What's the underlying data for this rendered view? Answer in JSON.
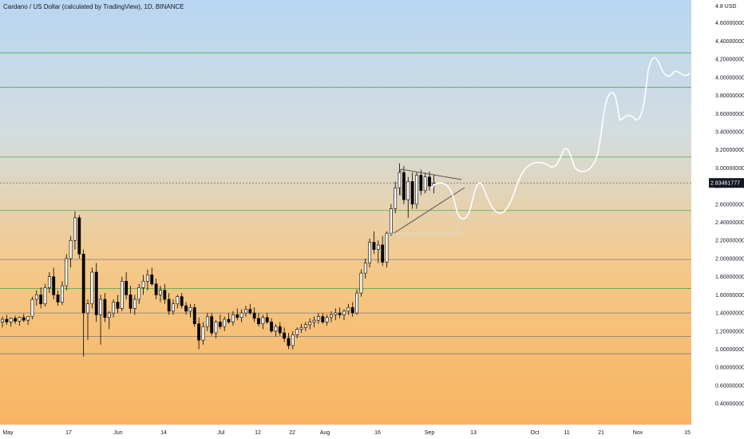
{
  "header": {
    "title": "Cardano / US Dollar (calculated by TradingView), 1D, BINANCE"
  },
  "chart_data": {
    "type": "candlestick",
    "y_axis": {
      "unit_label": "4.8 USD",
      "ylim": [
        0.3,
        4.8
      ],
      "ticks": [
        "4.60000000",
        "4.40000000",
        "4.20000000",
        "4.00000000",
        "3.80000000",
        "3.60000000",
        "3.40000000",
        "3.20000000",
        "3.00000000",
        "2.80000000",
        "2.60000000",
        "2.40000000",
        "2.20000000",
        "2.00000000",
        "1.80000000",
        "1.60000000",
        "1.40000000",
        "1.20000000",
        "1.00000000",
        "0.80000000",
        "0.60000000",
        "0.40000000"
      ]
    },
    "x_axis": {
      "ticks": [
        "May",
        "17",
        "Jun",
        "14",
        "Jul",
        "12",
        "22",
        "Aug",
        "16",
        "Sep",
        "13",
        "Oct",
        "11",
        "21",
        "Nov",
        "15"
      ]
    },
    "current_price": "2.83461777",
    "horizontal_levels": [
      {
        "value": 4.27,
        "color": "#4caf50"
      },
      {
        "value": 3.89,
        "color": "#4caf50"
      },
      {
        "value": 3.12,
        "color": "#4caf50"
      },
      {
        "value": 2.53,
        "color": "#4caf50"
      },
      {
        "value": 1.99,
        "color": "#787b86"
      },
      {
        "value": 1.67,
        "color": "#4caf50"
      },
      {
        "value": 1.4,
        "color": "#787b86"
      },
      {
        "value": 1.14,
        "color": "#787b86"
      },
      {
        "value": 0.95,
        "color": "#787b86"
      }
    ],
    "colors": {
      "up": "#ffffff",
      "down": "#000000",
      "wick": "#000000",
      "grid_green": "#4caf50",
      "grid_gray": "#787b86",
      "projection": "#ffffff",
      "price_label_bg": "#131722"
    },
    "candles": [
      [
        1.3,
        1.36,
        1.24,
        1.33
      ],
      [
        1.33,
        1.38,
        1.27,
        1.3
      ],
      [
        1.3,
        1.35,
        1.25,
        1.34
      ],
      [
        1.34,
        1.37,
        1.28,
        1.31
      ],
      [
        1.31,
        1.36,
        1.26,
        1.35
      ],
      [
        1.35,
        1.39,
        1.3,
        1.32
      ],
      [
        1.32,
        1.36,
        1.27,
        1.36
      ],
      [
        1.36,
        1.58,
        1.33,
        1.55
      ],
      [
        1.55,
        1.65,
        1.48,
        1.6
      ],
      [
        1.6,
        1.68,
        1.45,
        1.5
      ],
      [
        1.5,
        1.72,
        1.47,
        1.68
      ],
      [
        1.68,
        1.85,
        1.62,
        1.8
      ],
      [
        1.8,
        1.9,
        1.55,
        1.6
      ],
      [
        1.6,
        1.65,
        1.48,
        1.52
      ],
      [
        1.52,
        1.75,
        1.49,
        1.7
      ],
      [
        1.7,
        2.05,
        1.65,
        2.0
      ],
      [
        2.0,
        2.25,
        1.9,
        2.2
      ],
      [
        2.2,
        2.52,
        2.1,
        2.45
      ],
      [
        2.45,
        2.48,
        2.0,
        2.05
      ],
      [
        2.05,
        2.1,
        0.92,
        1.4
      ],
      [
        1.4,
        1.55,
        1.1,
        1.5
      ],
      [
        1.5,
        1.9,
        1.45,
        1.85
      ],
      [
        1.85,
        1.95,
        1.3,
        1.38
      ],
      [
        1.38,
        1.6,
        1.05,
        1.55
      ],
      [
        1.55,
        1.62,
        1.3,
        1.35
      ],
      [
        1.35,
        1.42,
        1.22,
        1.4
      ],
      [
        1.4,
        1.55,
        1.35,
        1.52
      ],
      [
        1.52,
        1.6,
        1.4,
        1.45
      ],
      [
        1.45,
        1.8,
        1.42,
        1.75
      ],
      [
        1.75,
        1.85,
        1.55,
        1.6
      ],
      [
        1.6,
        1.7,
        1.4,
        1.45
      ],
      [
        1.45,
        1.6,
        1.38,
        1.55
      ],
      [
        1.55,
        1.72,
        1.5,
        1.68
      ],
      [
        1.68,
        1.82,
        1.6,
        1.75
      ],
      [
        1.75,
        1.88,
        1.65,
        1.82
      ],
      [
        1.82,
        1.9,
        1.7,
        1.72
      ],
      [
        1.72,
        1.78,
        1.55,
        1.6
      ],
      [
        1.6,
        1.7,
        1.52,
        1.65
      ],
      [
        1.65,
        1.72,
        1.5,
        1.55
      ],
      [
        1.55,
        1.62,
        1.38,
        1.42
      ],
      [
        1.42,
        1.55,
        1.38,
        1.5
      ],
      [
        1.5,
        1.6,
        1.45,
        1.58
      ],
      [
        1.58,
        1.62,
        1.45,
        1.48
      ],
      [
        1.48,
        1.52,
        1.38,
        1.42
      ],
      [
        1.42,
        1.5,
        1.35,
        1.46
      ],
      [
        1.46,
        1.5,
        1.25,
        1.28
      ],
      [
        1.28,
        1.35,
        1.0,
        1.1
      ],
      [
        1.1,
        1.3,
        1.05,
        1.25
      ],
      [
        1.25,
        1.4,
        1.2,
        1.36
      ],
      [
        1.36,
        1.4,
        1.15,
        1.18
      ],
      [
        1.18,
        1.32,
        1.12,
        1.3
      ],
      [
        1.3,
        1.38,
        1.22,
        1.25
      ],
      [
        1.25,
        1.36,
        1.2,
        1.33
      ],
      [
        1.33,
        1.4,
        1.28,
        1.3
      ],
      [
        1.3,
        1.42,
        1.26,
        1.38
      ],
      [
        1.38,
        1.45,
        1.32,
        1.35
      ],
      [
        1.35,
        1.44,
        1.3,
        1.4
      ],
      [
        1.4,
        1.48,
        1.36,
        1.44
      ],
      [
        1.44,
        1.5,
        1.38,
        1.4
      ],
      [
        1.4,
        1.46,
        1.3,
        1.34
      ],
      [
        1.34,
        1.4,
        1.25,
        1.28
      ],
      [
        1.28,
        1.38,
        1.22,
        1.35
      ],
      [
        1.35,
        1.4,
        1.28,
        1.3
      ],
      [
        1.3,
        1.34,
        1.18,
        1.2
      ],
      [
        1.2,
        1.28,
        1.14,
        1.25
      ],
      [
        1.25,
        1.3,
        1.15,
        1.18
      ],
      [
        1.18,
        1.24,
        1.08,
        1.12
      ],
      [
        1.12,
        1.18,
        1.0,
        1.04
      ],
      [
        1.04,
        1.2,
        1.0,
        1.16
      ],
      [
        1.16,
        1.24,
        1.12,
        1.22
      ],
      [
        1.22,
        1.28,
        1.18,
        1.24
      ],
      [
        1.24,
        1.3,
        1.2,
        1.27
      ],
      [
        1.27,
        1.34,
        1.22,
        1.3
      ],
      [
        1.3,
        1.36,
        1.24,
        1.32
      ],
      [
        1.32,
        1.4,
        1.28,
        1.36
      ],
      [
        1.36,
        1.4,
        1.28,
        1.3
      ],
      [
        1.3,
        1.38,
        1.26,
        1.35
      ],
      [
        1.35,
        1.42,
        1.3,
        1.38
      ],
      [
        1.38,
        1.45,
        1.32,
        1.4
      ],
      [
        1.4,
        1.46,
        1.34,
        1.38
      ],
      [
        1.38,
        1.44,
        1.32,
        1.42
      ],
      [
        1.42,
        1.5,
        1.38,
        1.46
      ],
      [
        1.46,
        1.52,
        1.36,
        1.4
      ],
      [
        1.4,
        1.66,
        1.38,
        1.62
      ],
      [
        1.62,
        1.88,
        1.58,
        1.84
      ],
      [
        1.84,
        2.0,
        1.78,
        1.95
      ],
      [
        1.95,
        2.22,
        1.9,
        2.18
      ],
      [
        2.18,
        2.3,
        2.05,
        2.1
      ],
      [
        2.1,
        2.2,
        1.95,
        2.15
      ],
      [
        2.15,
        2.25,
        1.92,
        1.96
      ],
      [
        1.96,
        2.3,
        1.9,
        2.28
      ],
      [
        2.28,
        2.6,
        2.25,
        2.55
      ],
      [
        2.55,
        2.85,
        2.5,
        2.78
      ],
      [
        2.78,
        3.05,
        2.7,
        2.95
      ],
      [
        2.95,
        3.02,
        2.6,
        2.65
      ],
      [
        2.65,
        2.9,
        2.45,
        2.85
      ],
      [
        2.85,
        2.95,
        2.55,
        2.6
      ],
      [
        2.6,
        2.95,
        2.55,
        2.92
      ],
      [
        2.92,
        2.98,
        2.7,
        2.75
      ],
      [
        2.75,
        2.95,
        2.72,
        2.9
      ],
      [
        2.9,
        2.96,
        2.75,
        2.8
      ],
      [
        2.8,
        2.92,
        2.72,
        2.83
      ]
    ]
  }
}
